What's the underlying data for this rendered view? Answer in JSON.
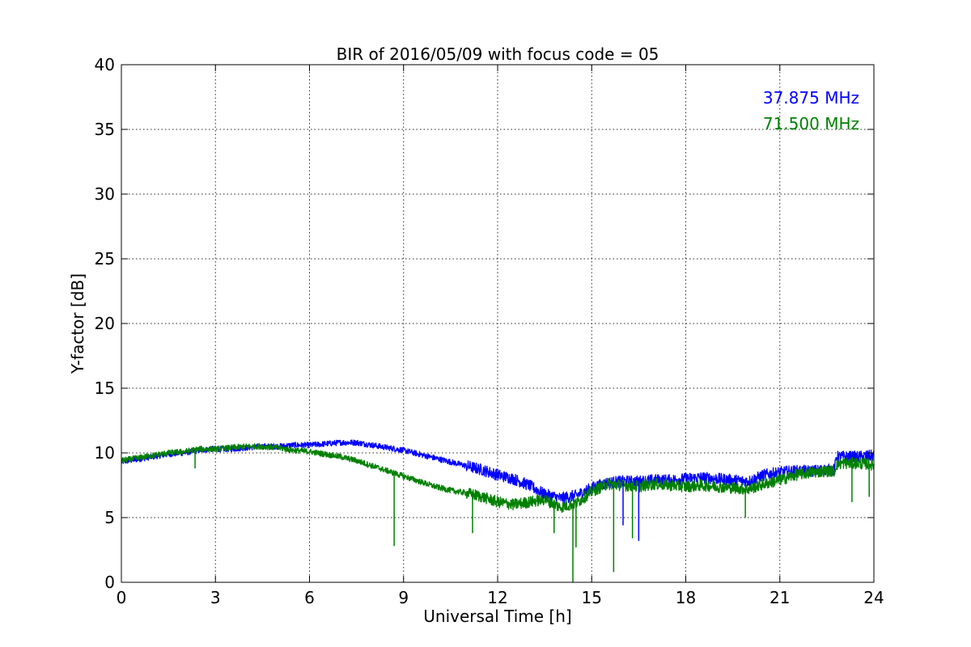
{
  "chart_data": {
    "type": "line",
    "title": "BIR of 2016/05/09 with focus code = 05",
    "xlabel": "Universal Time [h]",
    "ylabel": "Y-factor [dB]",
    "xlim": [
      0,
      24
    ],
    "ylim": [
      0,
      40
    ],
    "xticks": [
      0,
      3,
      6,
      9,
      12,
      15,
      18,
      21,
      24
    ],
    "yticks": [
      0,
      5,
      10,
      15,
      20,
      25,
      30,
      35,
      40
    ],
    "xtick_labels": [
      "0",
      "3",
      "6",
      "9",
      "12",
      "15",
      "18",
      "21",
      "24"
    ],
    "ytick_labels": [
      "0",
      "5",
      "10",
      "15",
      "20",
      "25",
      "30",
      "35",
      "40"
    ],
    "grid": true,
    "legend_position": "top-right",
    "series": [
      {
        "name": "37.875 MHz",
        "color": "#0000ff",
        "x": [
          0,
          0.5,
          1,
          1.5,
          2,
          2.5,
          2.9,
          3.0,
          3.5,
          4,
          4.5,
          5,
          5.5,
          6,
          6.5,
          7,
          7.5,
          8,
          8.5,
          9,
          9.5,
          10,
          10.5,
          11,
          11.5,
          12,
          12.5,
          13,
          13.5,
          14,
          14.5,
          15,
          15.5,
          16,
          16.5,
          17,
          17.5,
          18,
          18.5,
          19,
          19.5,
          20,
          20.5,
          21,
          21.5,
          22,
          22.5,
          22.75,
          22.8,
          23,
          23.5,
          24
        ],
        "y": [
          9.3,
          9.5,
          9.7,
          9.9,
          10.0,
          10.2,
          10.3,
          10.3,
          10.3,
          10.4,
          10.5,
          10.5,
          10.6,
          10.6,
          10.7,
          10.8,
          10.8,
          10.6,
          10.4,
          10.2,
          9.9,
          9.6,
          9.3,
          9.0,
          8.7,
          8.3,
          8.0,
          7.5,
          6.8,
          6.5,
          6.7,
          7.3,
          7.7,
          7.8,
          7.8,
          7.9,
          7.9,
          8.0,
          8.1,
          8.0,
          7.9,
          7.8,
          8.3,
          8.5,
          8.6,
          8.6,
          8.7,
          8.7,
          9.7,
          9.7,
          9.7,
          9.8
        ]
      },
      {
        "name": "71.500 MHz",
        "color": "#008000",
        "x": [
          0,
          0.5,
          1,
          1.5,
          2,
          2.5,
          3,
          3.5,
          4,
          4.5,
          5,
          5.5,
          6,
          6.5,
          7,
          7.5,
          8,
          8.5,
          9,
          9.5,
          10,
          10.5,
          11,
          11.5,
          12,
          12.5,
          13,
          13.5,
          14,
          14.5,
          15,
          15.5,
          16,
          16.5,
          17,
          17.5,
          18,
          18.5,
          19,
          19.5,
          20,
          20.5,
          21,
          21.5,
          22,
          22.5,
          22.75,
          22.8,
          23,
          23.5,
          24
        ],
        "y": [
          9.4,
          9.6,
          9.8,
          10.0,
          10.1,
          10.3,
          10.3,
          10.4,
          10.5,
          10.5,
          10.4,
          10.2,
          10.1,
          9.9,
          9.7,
          9.4,
          9.0,
          8.6,
          8.2,
          7.8,
          7.4,
          7.1,
          6.9,
          6.6,
          6.2,
          6.0,
          6.2,
          6.4,
          5.8,
          6.1,
          7.0,
          7.6,
          7.5,
          7.4,
          7.6,
          7.5,
          7.4,
          7.5,
          7.4,
          7.3,
          7.2,
          7.6,
          7.9,
          8.3,
          8.5,
          8.6,
          8.6,
          9.1,
          9.2,
          9.2,
          9.1
        ]
      }
    ],
    "spikes": [
      {
        "series": 1,
        "x": 2.35,
        "y": 8.8
      },
      {
        "series": 1,
        "x": 8.7,
        "y": 2.8
      },
      {
        "series": 1,
        "x": 11.2,
        "y": 3.8
      },
      {
        "series": 1,
        "x": 13.8,
        "y": 3.8
      },
      {
        "series": 1,
        "x": 14.4,
        "y": 0.0
      },
      {
        "series": 1,
        "x": 14.5,
        "y": 2.7
      },
      {
        "series": 1,
        "x": 15.7,
        "y": 0.8
      },
      {
        "series": 0,
        "x": 16.0,
        "y": 4.4
      },
      {
        "series": 1,
        "x": 16.3,
        "y": 3.4
      },
      {
        "series": 0,
        "x": 16.5,
        "y": 3.2
      },
      {
        "series": 1,
        "x": 19.9,
        "y": 5.0
      },
      {
        "series": 1,
        "x": 23.3,
        "y": 6.2
      },
      {
        "series": 1,
        "x": 23.85,
        "y": 6.6
      }
    ]
  }
}
